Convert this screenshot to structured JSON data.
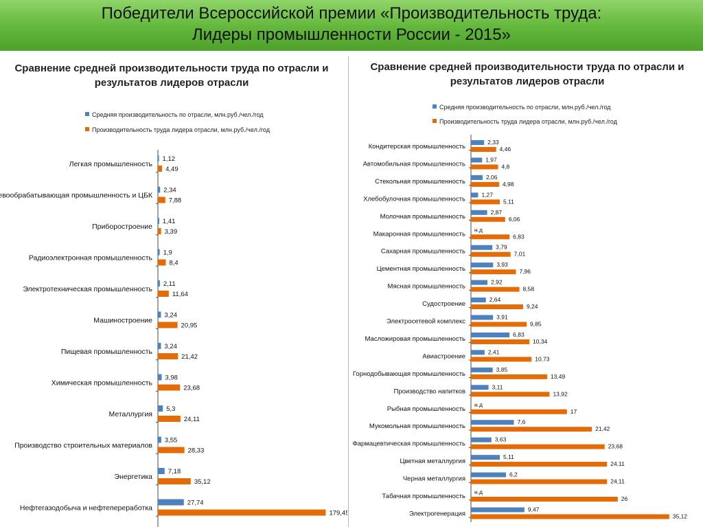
{
  "header": {
    "title_line1": "Победители Всероссийской премии «Производительность труда:",
    "title_line2": "Лидеры промышленности России - 2015»"
  },
  "colors": {
    "header_green": "#62b63a",
    "series_avg": "#4f81bd",
    "series_leader": "#e36c09"
  },
  "chart_data": [
    {
      "type": "bar",
      "orientation": "horizontal",
      "title": "Сравнение средней производительности труда по отрасли и результатов лидеров отрасли",
      "legend_position": "top-left",
      "grid": false,
      "xlim": [
        0,
        185
      ],
      "categories": [
        "Легкая промышленность",
        "Деревообрабатывающая промышленность и ЦБК",
        "Приборостроение",
        "Радиоэлектронная промышленность",
        "Электротехническая промышленность",
        "Машиностроение",
        "Пищевая промышленность",
        "Химическая промышленность",
        "Металлургия",
        "Производство строительных материалов",
        "Энергетика",
        "Нефтегазодобыча и нефтепереработка"
      ],
      "series": [
        {
          "name": "Средняя производительность по отрасли, млн.руб./чел./год",
          "values": [
            1.12,
            2.34,
            1.41,
            1.9,
            2.11,
            3.24,
            3.24,
            3.98,
            5.3,
            3.55,
            7.18,
            27.74
          ],
          "labels": [
            "1,12",
            "2,34",
            "1,41",
            "1,9",
            "2,11",
            "3,24",
            "3,24",
            "3,98",
            "5,3",
            "3,55",
            "7,18",
            "27,74"
          ]
        },
        {
          "name": "Производительность труда лидера отрасли, млн.руб./чел./год",
          "values": [
            4.49,
            7.88,
            3.39,
            8.4,
            11.64,
            20.95,
            21.42,
            23.68,
            24.11,
            28.33,
            35.12,
            179.45
          ],
          "labels": [
            "4,49",
            "7,88",
            "3,39",
            "8,4",
            "11,64",
            "20,95",
            "21,42",
            "23,68",
            "24,11",
            "28,33",
            "35,12",
            "179,45"
          ]
        }
      ]
    },
    {
      "type": "bar",
      "orientation": "horizontal",
      "title": "Сравнение средней производительности труда по отрасли и результатов лидеров отрасли",
      "legend_position": "top-left",
      "grid": false,
      "xlim": [
        0,
        36
      ],
      "categories": [
        "Кондитерская промышленность",
        "Автомобильная промышленность",
        "Стекольная промышленность",
        "Хлебобулочная промышленность",
        "Молочная промышленность",
        "Макаронная промышленность",
        "Сахарная промышленность",
        "Цементная промышленность",
        "Мясная промышленность",
        "Судостроение",
        "Электросетевой комплекс",
        "Масложировая промышленность",
        "Авиастроение",
        "Горнодобывающая промышленность",
        "Производство напитков",
        "Рыбная промышленность",
        "Мукомольная промышленность",
        "Фармацевтическая промышленность",
        "Цветная металлургия",
        "Черная металлургия",
        "Табачная промышленность",
        "Электрогенерация"
      ],
      "series": [
        {
          "name": "Средняя производительность по отрасли, млн.руб./чел./год",
          "values": [
            2.33,
            1.97,
            2.06,
            1.27,
            2.87,
            null,
            3.79,
            3.93,
            2.92,
            2.64,
            3.91,
            6.83,
            2.41,
            3.85,
            3.11,
            null,
            7.6,
            3.63,
            5.11,
            6.2,
            null,
            9.47
          ],
          "labels": [
            "2,33",
            "1,97",
            "2,06",
            "1,27",
            "2,87",
            "н.д",
            "3,79",
            "3,93",
            "2,92",
            "2,64",
            "3,91",
            "6,83",
            "2,41",
            "3,85",
            "3,11",
            "н.д",
            "7,6",
            "3,63",
            "5,11",
            "6,2",
            "н.д",
            "9,47"
          ]
        },
        {
          "name": "Производительность труда лидера отрасли, млн.руб./чел./год",
          "values": [
            4.46,
            4.8,
            4.98,
            5.11,
            6.06,
            6.83,
            7.01,
            7.96,
            8.58,
            9.24,
            9.85,
            10.34,
            10.73,
            13.49,
            13.92,
            17,
            21.42,
            23.68,
            24.11,
            24.11,
            26,
            35.12
          ],
          "labels": [
            "4,46",
            "4,8",
            "4,98",
            "5,11",
            "6,06",
            "6,83",
            "7,01",
            "7,96",
            "8,58",
            "9,24",
            "9,85",
            "10,34",
            "10,73",
            "13,49",
            "13,92",
            "17",
            "21,42",
            "23,68",
            "24,11",
            "24,11",
            "26",
            "35,12"
          ]
        }
      ]
    }
  ]
}
